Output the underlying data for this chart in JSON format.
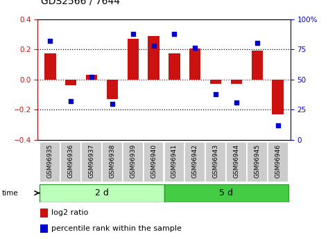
{
  "title": "GDS2566 / 7644",
  "samples": [
    "GSM96935",
    "GSM96936",
    "GSM96937",
    "GSM96938",
    "GSM96939",
    "GSM96940",
    "GSM96941",
    "GSM96942",
    "GSM96943",
    "GSM96944",
    "GSM96945",
    "GSM96946"
  ],
  "log2_ratio": [
    0.175,
    -0.04,
    0.03,
    -0.13,
    0.27,
    0.29,
    0.175,
    0.205,
    -0.03,
    -0.03,
    0.19,
    -0.23
  ],
  "percentile_rank": [
    82,
    32,
    52,
    30,
    88,
    78,
    88,
    76,
    38,
    31,
    80,
    12
  ],
  "groups": [
    {
      "label": "2 d",
      "start": 0,
      "end": 6,
      "color": "#bbffbb"
    },
    {
      "label": "5 d",
      "start": 6,
      "end": 12,
      "color": "#44cc44"
    }
  ],
  "bar_color": "#cc1111",
  "dot_color": "#0000cc",
  "ylim_left": [
    -0.4,
    0.4
  ],
  "ylim_right": [
    0,
    100
  ],
  "yticks_left": [
    -0.4,
    -0.2,
    0.0,
    0.2,
    0.4
  ],
  "yticks_right": [
    0,
    25,
    50,
    75,
    100
  ],
  "dotted_lines_black": [
    -0.2,
    0.2
  ],
  "zero_line_color": "#cc0000",
  "dotted_color": "#000000",
  "bg_color": "#ffffff",
  "sample_bg": "#cccccc",
  "bar_width": 0.55,
  "time_label": "time",
  "legend_log2": "log2 ratio",
  "legend_pct": "percentile rank within the sample",
  "title_fontsize": 10,
  "tick_fontsize": 7.5,
  "sample_fontsize": 6.5,
  "group_fontsize": 9,
  "legend_fontsize": 8
}
